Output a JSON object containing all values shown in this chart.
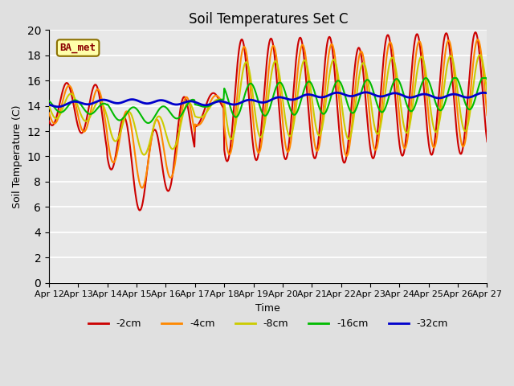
{
  "title": "Soil Temperatures Set C",
  "xlabel": "Time",
  "ylabel": "Soil Temperature (C)",
  "ylim": [
    0,
    20
  ],
  "yticks": [
    0,
    2,
    4,
    6,
    8,
    10,
    12,
    14,
    16,
    18,
    20
  ],
  "xlabels": [
    "Apr 12",
    "Apr 13",
    "Apr 14",
    "Apr 15",
    "Apr 16",
    "Apr 17",
    "Apr 18",
    "Apr 19",
    "Apr 20",
    "Apr 21",
    "Apr 22",
    "Apr 23",
    "Apr 24",
    "Apr 25",
    "Apr 26",
    "Apr 27"
  ],
  "series_labels": [
    "-2cm",
    "-4cm",
    "-8cm",
    "-16cm",
    "-32cm"
  ],
  "series_colors": [
    "#cc0000",
    "#ff8800",
    "#cccc00",
    "#00bb00",
    "#0000cc"
  ],
  "line_widths": [
    1.5,
    1.5,
    1.5,
    1.5,
    2.0
  ],
  "background_color": "#e0e0e0",
  "plot_bg_color": "#e8e8e8",
  "figsize": [
    6.4,
    4.8
  ],
  "dpi": 100
}
